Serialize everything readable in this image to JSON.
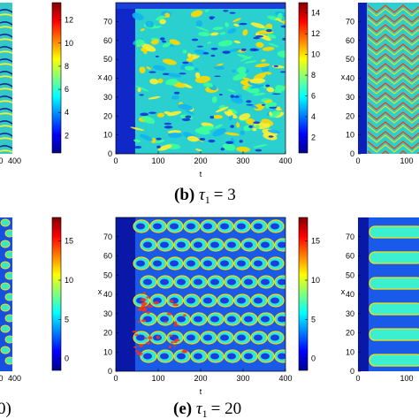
{
  "chart_data": [
    {
      "id": "a-partial",
      "type": "heatmap",
      "x_ticks": [
        "0",
        "400"
      ],
      "colorbar_ticks": [
        2,
        4,
        6,
        8,
        10,
        12
      ],
      "colorbar_range": [
        0.5,
        13.5
      ],
      "caption": null
    },
    {
      "id": "b",
      "type": "heatmap",
      "xlabel": "t",
      "ylabel": "x",
      "xlim": [
        0,
        400
      ],
      "ylim": [
        0,
        80
      ],
      "x_ticks": [
        0,
        100,
        200,
        300,
        400
      ],
      "y_ticks": [
        0,
        10,
        20,
        30,
        40,
        50,
        60,
        70
      ],
      "colorbar_ticks": [
        2,
        4,
        6,
        8,
        10,
        12,
        14
      ],
      "colorbar_range": [
        0.5,
        15
      ],
      "caption": {
        "letter": "(b)",
        "symbol": "τ",
        "sub": "1",
        "equals": "= 3"
      }
    },
    {
      "id": "c-partial",
      "type": "heatmap",
      "ylabel": "x",
      "y_ticks": [
        0,
        10,
        20,
        30,
        40,
        50,
        60,
        70
      ],
      "x_ticks": [
        "0",
        "100"
      ],
      "caption": null
    },
    {
      "id": "d-partial",
      "type": "heatmap",
      "x_ticks": [
        "0",
        "400"
      ],
      "colorbar_ticks": [
        0,
        5,
        10,
        15
      ],
      "colorbar_range": [
        -1.5,
        18
      ],
      "caption": {
        "fragment": "0)"
      }
    },
    {
      "id": "e",
      "type": "heatmap",
      "xlabel": "t",
      "ylabel": "x",
      "xlim": [
        0,
        400
      ],
      "ylim": [
        0,
        80
      ],
      "x_ticks": [
        0,
        100,
        200,
        300,
        400
      ],
      "y_ticks": [
        0,
        10,
        20,
        30,
        40,
        50,
        60,
        70
      ],
      "colorbar_ticks": [
        0,
        5,
        10,
        15
      ],
      "colorbar_range": [
        -1.5,
        18
      ],
      "caption": {
        "letter": "(e)",
        "symbol": "τ",
        "sub": "1",
        "equals": "= 20"
      }
    },
    {
      "id": "f-partial",
      "type": "heatmap",
      "ylabel": "x",
      "y_ticks": [
        0,
        10,
        20,
        30,
        40,
        50,
        60,
        70
      ],
      "x_ticks": [
        "0",
        "100"
      ],
      "caption": null
    }
  ]
}
